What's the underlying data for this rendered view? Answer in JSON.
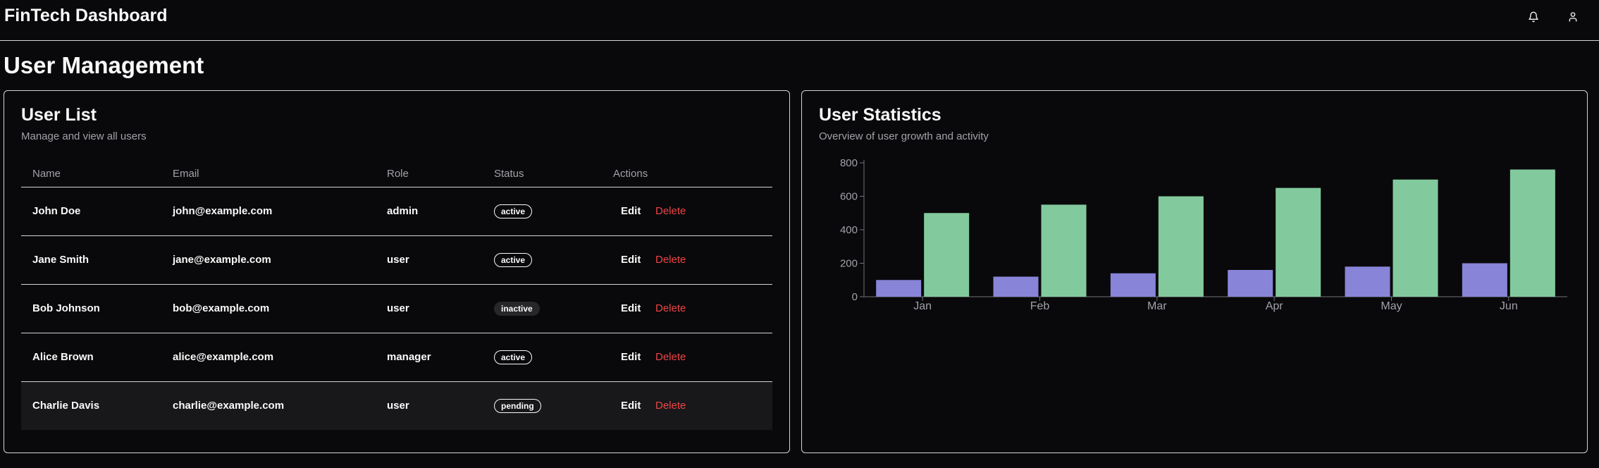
{
  "header": {
    "app_title": "FinTech Dashboard",
    "icons": [
      "bell-icon",
      "user-icon"
    ]
  },
  "page": {
    "title": "User Management"
  },
  "user_list": {
    "title": "User List",
    "subtitle": "Manage and view all users",
    "columns": [
      "Name",
      "Email",
      "Role",
      "Status",
      "Actions"
    ],
    "rows": [
      {
        "name": "John Doe",
        "email": "john@example.com",
        "role": "admin",
        "status": "active"
      },
      {
        "name": "Jane Smith",
        "email": "jane@example.com",
        "role": "user",
        "status": "active"
      },
      {
        "name": "Bob Johnson",
        "email": "bob@example.com",
        "role": "user",
        "status": "inactive"
      },
      {
        "name": "Alice Brown",
        "email": "alice@example.com",
        "role": "manager",
        "status": "active"
      },
      {
        "name": "Charlie Davis",
        "email": "charlie@example.com",
        "role": "user",
        "status": "pending"
      }
    ],
    "edit_label": "Edit",
    "delete_label": "Delete"
  },
  "statistics": {
    "title": "User Statistics",
    "subtitle": "Overview of user growth and activity"
  },
  "colors": {
    "series_a": "#8884d8",
    "series_b": "#82ca9d",
    "delete": "#ef4444"
  },
  "chart_data": {
    "type": "bar",
    "categories": [
      "Jan",
      "Feb",
      "Mar",
      "Apr",
      "May",
      "Jun"
    ],
    "series": [
      {
        "values": [
          100,
          120,
          140,
          160,
          180,
          200
        ]
      },
      {
        "values": [
          500,
          550,
          600,
          650,
          700,
          760
        ]
      }
    ],
    "yticks": [
      0,
      200,
      400,
      600,
      800
    ],
    "ylim": [
      0,
      800
    ],
    "title": "",
    "xlabel": "",
    "ylabel": "",
    "grid": false
  }
}
